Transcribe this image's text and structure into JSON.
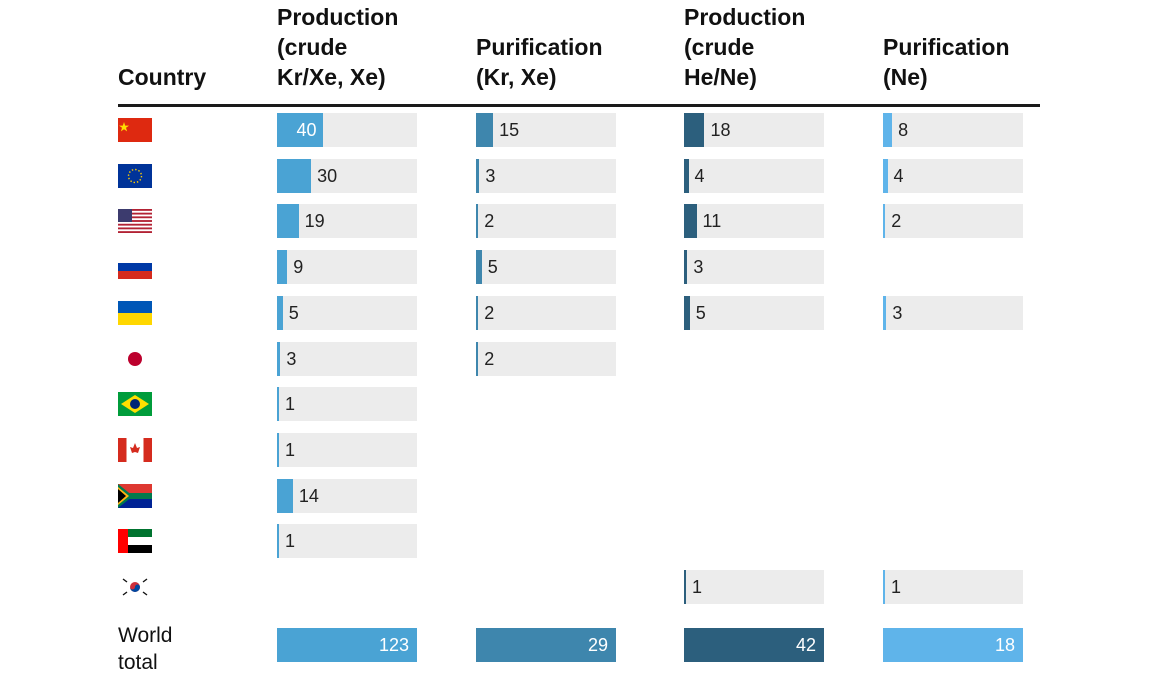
{
  "chart_data": {
    "type": "table",
    "columns": [
      {
        "header": "Production\n(crude\nKr/Xe, Xe)",
        "color": "#4aa3d4"
      },
      {
        "header": "Purification\n(Kr, Xe)",
        "color": "#3e86ad"
      },
      {
        "header": "Production\n(crude\nHe/Ne)",
        "color": "#2c5f7d"
      },
      {
        "header": "Purification\n(Ne)",
        "color": "#5fb4ea"
      }
    ],
    "country_header": "Country",
    "rows": [
      {
        "flag": "china-flag",
        "values": [
          40,
          15,
          18,
          8
        ]
      },
      {
        "flag": "eu-flag",
        "values": [
          30,
          3,
          4,
          4
        ]
      },
      {
        "flag": "usa-flag",
        "values": [
          19,
          2,
          11,
          2
        ]
      },
      {
        "flag": "russia-flag",
        "values": [
          9,
          5,
          3,
          null
        ]
      },
      {
        "flag": "ukraine-flag",
        "values": [
          5,
          2,
          5,
          3
        ]
      },
      {
        "flag": "japan-flag",
        "values": [
          3,
          2,
          null,
          null
        ]
      },
      {
        "flag": "brazil-flag",
        "values": [
          1,
          null,
          null,
          null
        ]
      },
      {
        "flag": "canada-flag",
        "values": [
          1,
          null,
          null,
          null
        ]
      },
      {
        "flag": "south-africa-flag",
        "values": [
          14,
          null,
          null,
          null
        ]
      },
      {
        "flag": "uae-flag",
        "values": [
          1,
          null,
          null,
          null
        ]
      },
      {
        "flag": "south-korea-flag",
        "values": [
          null,
          null,
          1,
          1
        ]
      }
    ],
    "total_label": "World\ntotal",
    "totals": [
      123,
      29,
      42,
      18
    ],
    "scale_max": 123
  }
}
